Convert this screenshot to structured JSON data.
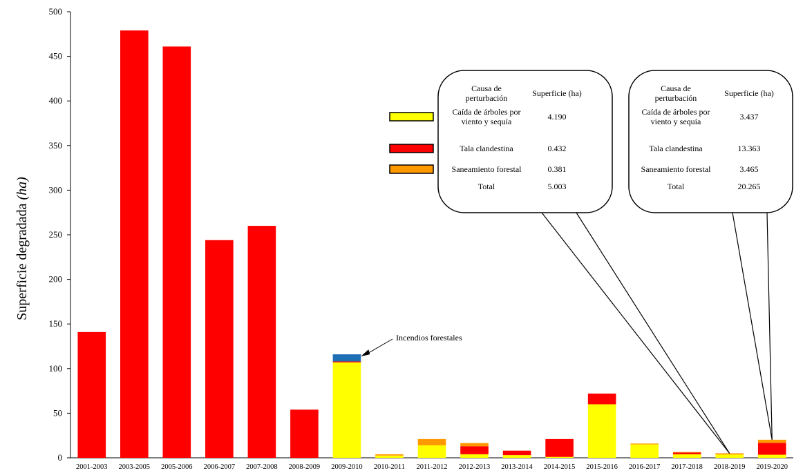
{
  "chart_data": {
    "type": "bar",
    "stacked": true,
    "title": "",
    "xlabel": "",
    "ylabel": "Superficie degradada",
    "ylabel_unit": "(ha)",
    "ylim": [
      0,
      500
    ],
    "yticks": [
      0,
      50,
      100,
      150,
      200,
      250,
      300,
      350,
      400,
      450,
      500
    ],
    "grid": false,
    "categories": [
      "2001-2003",
      "2003-2005",
      "2005-2006",
      "2006-2007",
      "2007-2008",
      "2008-2009",
      "2009-2010",
      "2010-2011",
      "2011-2012",
      "2012-2013",
      "2013-2014",
      "2014-2015",
      "2015-2016",
      "2016-2017",
      "2017-2018",
      "2018-2019",
      "2019-2020"
    ],
    "series": [
      {
        "name": "Caída de árboles por viento y sequía",
        "color": "#FFFF00",
        "values": [
          0,
          0,
          0,
          0,
          0,
          0,
          107,
          2.5,
          14,
          4,
          3,
          1,
          60,
          15,
          4,
          4.19,
          3.437
        ]
      },
      {
        "name": "Tala clandestina",
        "color": "#FF0000",
        "values": [
          141,
          479,
          461,
          244,
          260,
          54,
          1,
          0,
          0,
          9,
          5,
          20,
          12,
          0,
          2,
          0.432,
          13.363
        ]
      },
      {
        "name": "Saneamiento forestal",
        "color": "#FF9900",
        "values": [
          0,
          0,
          0,
          0,
          0,
          0,
          0,
          1.5,
          7,
          3.5,
          0,
          0,
          0,
          1,
          0.5,
          0.381,
          3.465
        ]
      },
      {
        "name": "Incendios forestales",
        "color": "#1F6FB5",
        "values": [
          0,
          0,
          0,
          0,
          0,
          0,
          8,
          0,
          0,
          0,
          0,
          0,
          0,
          0,
          0,
          0,
          0
        ]
      }
    ],
    "annotations": [
      {
        "text": "Incendios forestales",
        "target_category": "2009-2010"
      }
    ],
    "callouts": [
      {
        "target_category": "2018-2019",
        "header_cause": "Causa de perturbación",
        "header_area": "Superficie (ha)",
        "rows": [
          {
            "cause": "Caída de árboles por viento y sequía",
            "value": "4.190",
            "color": "#FFFF00"
          },
          {
            "cause": "Tala clandestina",
            "value": "0.432",
            "color": "#FF0000"
          },
          {
            "cause": "Saneamiento forestal",
            "value": "0.381",
            "color": "#FF9900"
          },
          {
            "cause": "Total",
            "value": "5.003",
            "color": ""
          }
        ]
      },
      {
        "target_category": "2019-2020",
        "header_cause": "Causa de perturbación",
        "header_area": "Superficie (ha)",
        "rows": [
          {
            "cause": "Caída de árboles por viento y sequía",
            "value": "3.437",
            "color": "#FFFF00"
          },
          {
            "cause": "Tala clandestina",
            "value": "13.363",
            "color": "#FF0000"
          },
          {
            "cause": "Saneamiento forestal",
            "value": "3.465",
            "color": "#FF9900"
          },
          {
            "cause": "Total",
            "value": "20.265",
            "color": ""
          }
        ]
      }
    ]
  }
}
